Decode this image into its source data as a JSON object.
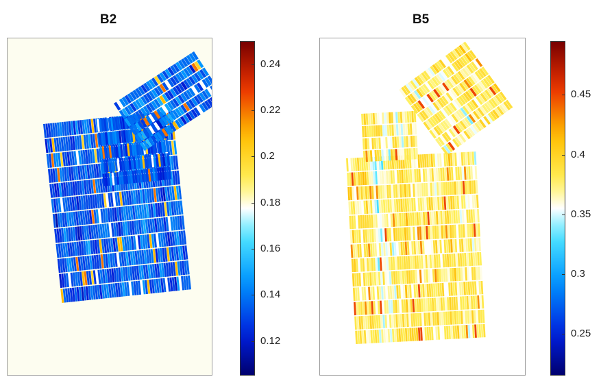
{
  "chart_data": [
    {
      "type": "heatmap",
      "title": "B2",
      "background": "#fdfdf0",
      "colormap": "jet",
      "color_range": [
        0.105,
        0.25
      ],
      "colorbar_ticks": [
        0.12,
        0.14,
        0.16,
        0.18,
        0.2,
        0.22,
        0.24
      ],
      "colorbar_tick_labels": [
        "0.12",
        "0.14",
        "0.16",
        "0.18",
        "0.2",
        "0.22",
        "0.24"
      ],
      "typical_value": 0.135,
      "value_spread": 0.02,
      "highlight_values": [
        0.2,
        0.21,
        0.22
      ]
    },
    {
      "type": "heatmap",
      "title": "B5",
      "background": "#ffffff",
      "colormap": "jet",
      "color_range": [
        0.215,
        0.495
      ],
      "colorbar_ticks": [
        0.25,
        0.3,
        0.35,
        0.4,
        0.45
      ],
      "colorbar_tick_labels": [
        "0.25",
        "0.3",
        "0.35",
        "0.4",
        "0.45"
      ],
      "typical_value": 0.375,
      "value_spread": 0.045,
      "highlight_values": [
        0.43,
        0.45
      ]
    }
  ]
}
